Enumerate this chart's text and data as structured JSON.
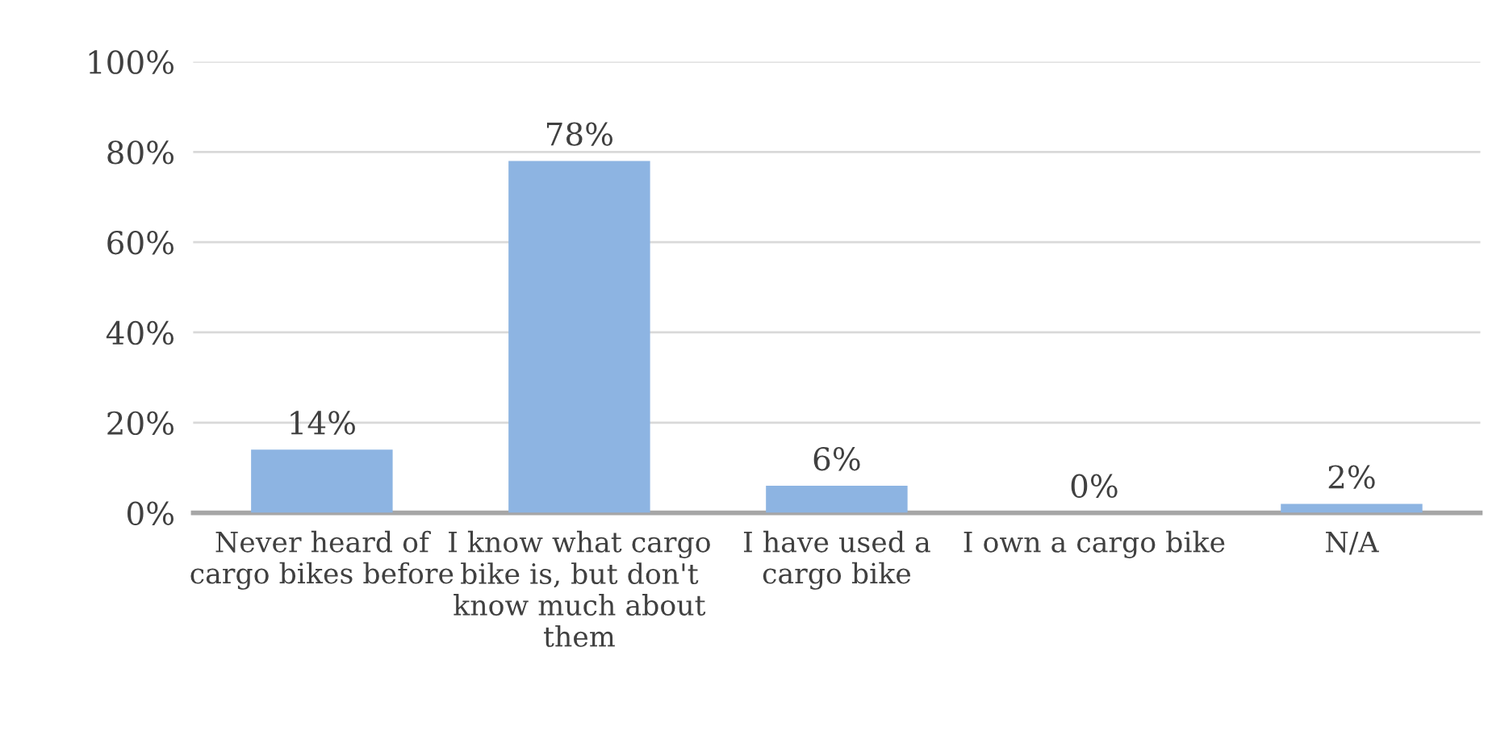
{
  "chart_data": {
    "type": "bar",
    "categories": [
      "Never heard of cargo bikes before",
      "I know what cargo bike is, but don't know much about them",
      "I have used a cargo bike",
      "I own a cargo bike",
      "N/A"
    ],
    "values": [
      14,
      78,
      6,
      0,
      2
    ],
    "value_labels": [
      "14%",
      "78%",
      "6%",
      "0%",
      "2%"
    ],
    "color": "#8db4e2",
    "ylim": [
      0,
      100
    ],
    "yticks": [
      {
        "value": 0,
        "label": "0%"
      },
      {
        "value": 20,
        "label": "20%"
      },
      {
        "value": 40,
        "label": "40%"
      },
      {
        "value": 60,
        "label": "60%"
      },
      {
        "value": 80,
        "label": "80%"
      },
      {
        "value": 100,
        "label": "100%"
      }
    ],
    "grid": "y"
  }
}
